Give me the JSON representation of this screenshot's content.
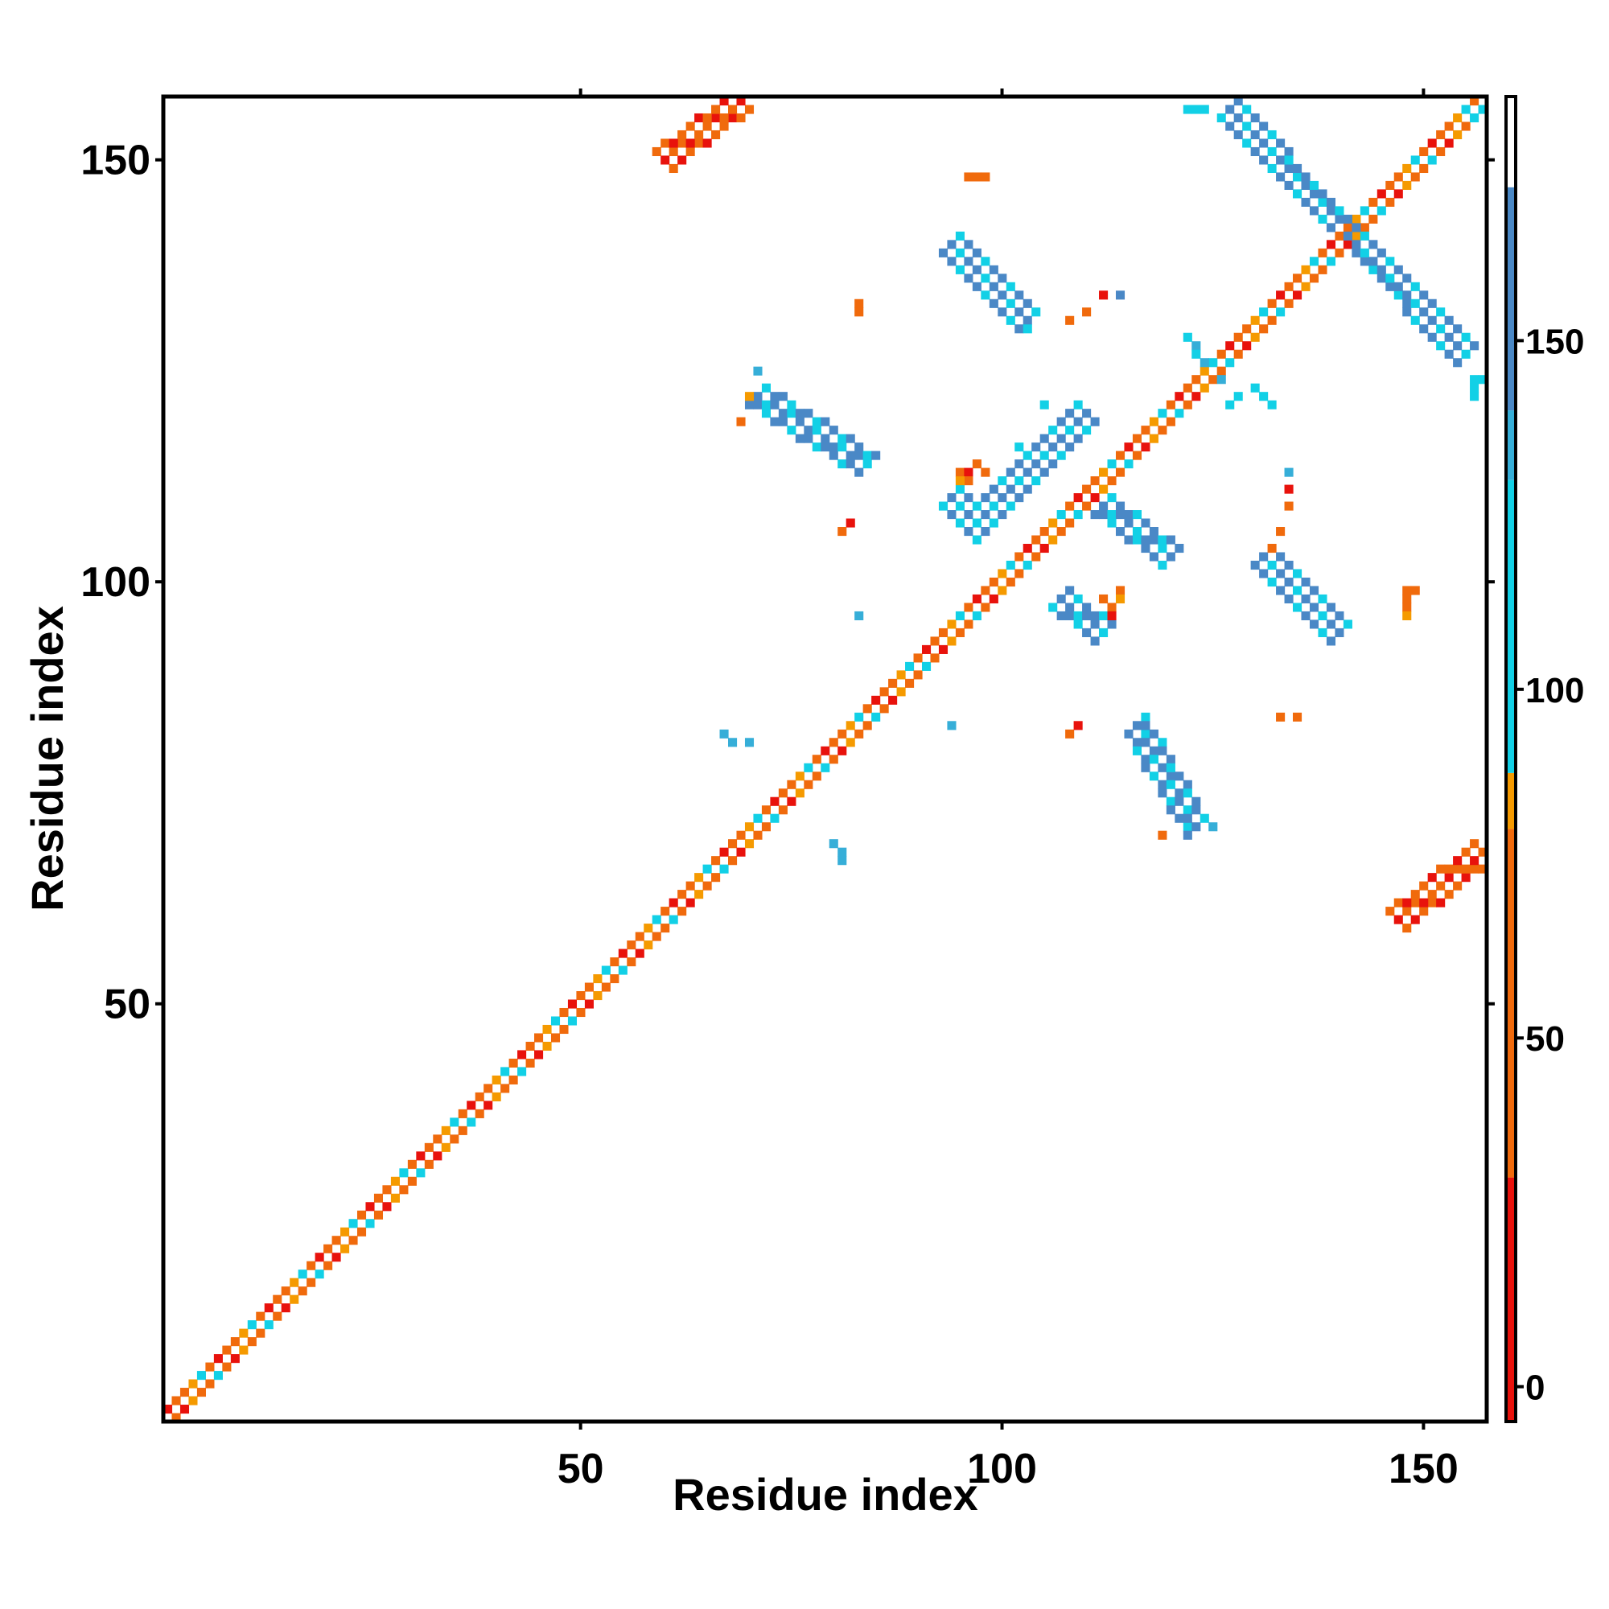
{
  "chart_data": {
    "type": "heatmap",
    "title": "",
    "xlabel": "Residue index",
    "ylabel": "Residue index",
    "xlim": [
      1,
      157
    ],
    "ylim": [
      1,
      157
    ],
    "x_ticks": [
      50,
      100,
      150
    ],
    "y_ticks": [
      50,
      100,
      150
    ],
    "colorbar": {
      "range": [
        -5,
        185
      ],
      "ticks": [
        0,
        50,
        100,
        150
      ],
      "bands": [
        {
          "from": -5,
          "to": 30,
          "color": "#e8120c"
        },
        {
          "from": 30,
          "to": 80,
          "color": "#f06a0c"
        },
        {
          "from": 80,
          "to": 88,
          "color": "#f59a00"
        },
        {
          "from": 88,
          "to": 130,
          "color": "#12d0e6"
        },
        {
          "from": 130,
          "to": 140,
          "color": "#36aed8"
        },
        {
          "from": 140,
          "to": 172,
          "color": "#4a88c6"
        },
        {
          "from": 172,
          "to": 185,
          "color": "#ffffff"
        }
      ]
    },
    "colors": {
      "red": "#e8120c",
      "orange": "#f06a0c",
      "amber": "#f59a00",
      "cyan": "#12d0e6",
      "steel": "#4a88c6",
      "sky": "#36aed8"
    },
    "regions": [
      {
        "kind": "band",
        "x0": 1,
        "y0": 2,
        "x1": 156,
        "y1": 157,
        "width": 1.2,
        "pattern": [
          "red",
          "orange",
          "orange",
          "amber",
          "cyan",
          "orange"
        ]
      },
      {
        "kind": "band",
        "x0": 2,
        "y0": 1,
        "x1": 157,
        "y1": 156,
        "width": 1.2,
        "pattern": [
          "orange",
          "red",
          "amber",
          "orange",
          "orange",
          "cyan"
        ]
      },
      {
        "kind": "band",
        "x0": 110,
        "y0": 120,
        "x1": 99,
        "y1": 109,
        "width": 3.2,
        "pattern": [
          "steel",
          "steel",
          "cyan"
        ]
      },
      {
        "kind": "band",
        "x0": 111,
        "y0": 110,
        "x1": 120,
        "y1": 103,
        "width": 3.0,
        "pattern": [
          "steel",
          "steel",
          "cyan"
        ]
      },
      {
        "kind": "band",
        "x0": 94,
        "y0": 140,
        "x1": 103,
        "y1": 131,
        "width": 3.2,
        "pattern": [
          "steel",
          "cyan",
          "steel"
        ]
      },
      {
        "kind": "band",
        "x0": 127,
        "y0": 156,
        "x1": 155,
        "y1": 127,
        "width": 3.2,
        "pattern": [
          "steel",
          "steel",
          "cyan"
        ]
      },
      {
        "kind": "band",
        "x0": 131,
        "y0": 103,
        "x1": 140,
        "y1": 94,
        "width": 3.2,
        "pattern": [
          "steel",
          "cyan",
          "steel"
        ]
      },
      {
        "kind": "band",
        "x0": 116,
        "y0": 83,
        "x1": 123,
        "y1": 71,
        "width": 3.0,
        "pattern": [
          "steel",
          "cyan",
          "steel"
        ]
      },
      {
        "kind": "band",
        "x0": 71,
        "y0": 122,
        "x1": 84,
        "y1": 114,
        "width": 3.0,
        "pattern": [
          "steel",
          "cyan",
          "steel"
        ]
      },
      {
        "kind": "band",
        "x0": 60,
        "y0": 150,
        "x1": 69,
        "y1": 157,
        "width": 2.6,
        "pattern": [
          "red",
          "orange",
          "orange"
        ]
      },
      {
        "kind": "band",
        "x0": 147,
        "y0": 60,
        "x1": 157,
        "y1": 68,
        "width": 2.6,
        "pattern": [
          "red",
          "orange",
          "orange"
        ]
      },
      {
        "kind": "band",
        "x0": 107,
        "y0": 98,
        "x1": 112,
        "y1": 94,
        "width": 2.2,
        "pattern": [
          "steel",
          "steel",
          "cyan"
        ]
      },
      {
        "kind": "band",
        "x0": 94,
        "y0": 110,
        "x1": 98,
        "y1": 106,
        "width": 2.0,
        "pattern": [
          "steel",
          "cyan"
        ]
      },
      {
        "kind": "band",
        "x0": 130,
        "y0": 123,
        "x1": 132,
        "y1": 121,
        "width": 1.5,
        "pattern": [
          "cyan"
        ]
      },
      {
        "kind": "band",
        "x0": 122,
        "y0": 129,
        "x1": 124,
        "y1": 126,
        "width": 1.5,
        "pattern": [
          "cyan",
          "sky"
        ]
      }
    ],
    "points": [
      {
        "x": 95,
        "y": 113,
        "color": "orange"
      },
      {
        "x": 96,
        "y": 113,
        "color": "red"
      },
      {
        "x": 96,
        "y": 112,
        "color": "orange"
      },
      {
        "x": 97,
        "y": 114,
        "color": "orange"
      },
      {
        "x": 95,
        "y": 112,
        "color": "amber"
      },
      {
        "x": 98,
        "y": 113,
        "color": "orange"
      },
      {
        "x": 112,
        "y": 98,
        "color": "orange"
      },
      {
        "x": 113,
        "y": 97,
        "color": "orange"
      },
      {
        "x": 114,
        "y": 99,
        "color": "orange"
      },
      {
        "x": 113,
        "y": 96,
        "color": "red"
      },
      {
        "x": 114,
        "y": 98,
        "color": "amber"
      },
      {
        "x": 97,
        "y": 148,
        "color": "orange"
      },
      {
        "x": 98,
        "y": 148,
        "color": "orange"
      },
      {
        "x": 96,
        "y": 148,
        "color": "orange"
      },
      {
        "x": 83,
        "y": 132,
        "color": "orange"
      },
      {
        "x": 83,
        "y": 133,
        "color": "orange"
      },
      {
        "x": 70,
        "y": 122,
        "color": "amber"
      },
      {
        "x": 69,
        "y": 119,
        "color": "orange"
      },
      {
        "x": 71,
        "y": 125,
        "color": "sky"
      },
      {
        "x": 82,
        "y": 107,
        "color": "red"
      },
      {
        "x": 81,
        "y": 106,
        "color": "orange"
      },
      {
        "x": 83,
        "y": 96,
        "color": "sky"
      },
      {
        "x": 108,
        "y": 131,
        "color": "orange"
      },
      {
        "x": 110,
        "y": 132,
        "color": "orange"
      },
      {
        "x": 112,
        "y": 134,
        "color": "red"
      },
      {
        "x": 114,
        "y": 134,
        "color": "steel"
      },
      {
        "x": 103,
        "y": 130,
        "color": "cyan"
      },
      {
        "x": 108,
        "y": 82,
        "color": "orange"
      },
      {
        "x": 109,
        "y": 83,
        "color": "red"
      },
      {
        "x": 94,
        "y": 83,
        "color": "sky"
      },
      {
        "x": 67,
        "y": 82,
        "color": "sky"
      },
      {
        "x": 68,
        "y": 81,
        "color": "sky"
      },
      {
        "x": 70,
        "y": 81,
        "color": "sky"
      },
      {
        "x": 80,
        "y": 69,
        "color": "sky"
      },
      {
        "x": 81,
        "y": 68,
        "color": "sky"
      },
      {
        "x": 81,
        "y": 67,
        "color": "sky"
      },
      {
        "x": 119,
        "y": 70,
        "color": "orange"
      },
      {
        "x": 125,
        "y": 71,
        "color": "sky"
      },
      {
        "x": 134,
        "y": 109,
        "color": "orange"
      },
      {
        "x": 134,
        "y": 111,
        "color": "red"
      },
      {
        "x": 134,
        "y": 113,
        "color": "sky"
      },
      {
        "x": 133,
        "y": 106,
        "color": "orange"
      },
      {
        "x": 132,
        "y": 104,
        "color": "orange"
      },
      {
        "x": 133,
        "y": 84,
        "color": "orange"
      },
      {
        "x": 135,
        "y": 84,
        "color": "orange"
      },
      {
        "x": 148,
        "y": 97,
        "color": "orange"
      },
      {
        "x": 148,
        "y": 98,
        "color": "orange"
      },
      {
        "x": 148,
        "y": 99,
        "color": "orange"
      },
      {
        "x": 149,
        "y": 99,
        "color": "orange"
      },
      {
        "x": 148,
        "y": 96,
        "color": "amber"
      },
      {
        "x": 122,
        "y": 156,
        "color": "cyan"
      },
      {
        "x": 123,
        "y": 156,
        "color": "cyan"
      },
      {
        "x": 124,
        "y": 156,
        "color": "cyan"
      },
      {
        "x": 156,
        "y": 124,
        "color": "cyan"
      },
      {
        "x": 156,
        "y": 123,
        "color": "cyan"
      },
      {
        "x": 156,
        "y": 122,
        "color": "cyan"
      },
      {
        "x": 157,
        "y": 124,
        "color": "cyan"
      },
      {
        "x": 155,
        "y": 156,
        "color": "cyan"
      },
      {
        "x": 156,
        "y": 155,
        "color": "cyan"
      },
      {
        "x": 127,
        "y": 121,
        "color": "cyan"
      },
      {
        "x": 128,
        "y": 122,
        "color": "cyan"
      },
      {
        "x": 126,
        "y": 124,
        "color": "sky"
      },
      {
        "x": 105,
        "y": 121,
        "color": "cyan"
      },
      {
        "x": 102,
        "y": 116,
        "color": "cyan"
      }
    ]
  }
}
